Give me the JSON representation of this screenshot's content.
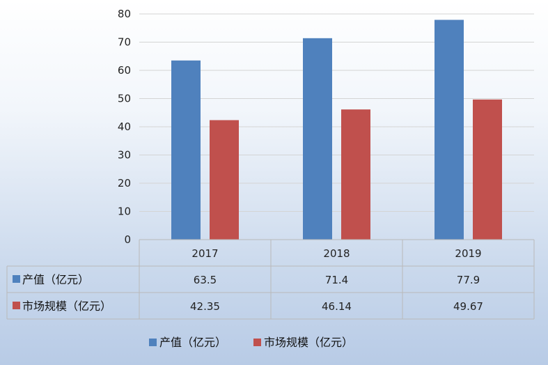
{
  "chart_data": {
    "type": "bar",
    "categories": [
      "2017",
      "2018",
      "2019"
    ],
    "series": [
      {
        "name": "产值（亿元）",
        "values": [
          63.5,
          71.4,
          77.9
        ],
        "color": "#4f81bd",
        "table_values": [
          "63.5",
          "71.4",
          "77.9"
        ]
      },
      {
        "name": "市场规模（亿元）",
        "values": [
          42.35,
          46.14,
          49.67
        ],
        "color": "#c0504d",
        "table_values": [
          "42.35",
          "46.14",
          "49.67"
        ]
      }
    ],
    "ylim": [
      0,
      80
    ],
    "yticks": [
      0,
      10,
      20,
      30,
      40,
      50,
      60,
      70,
      80
    ],
    "grid": true,
    "data_table": true,
    "legend_position": "bottom"
  }
}
